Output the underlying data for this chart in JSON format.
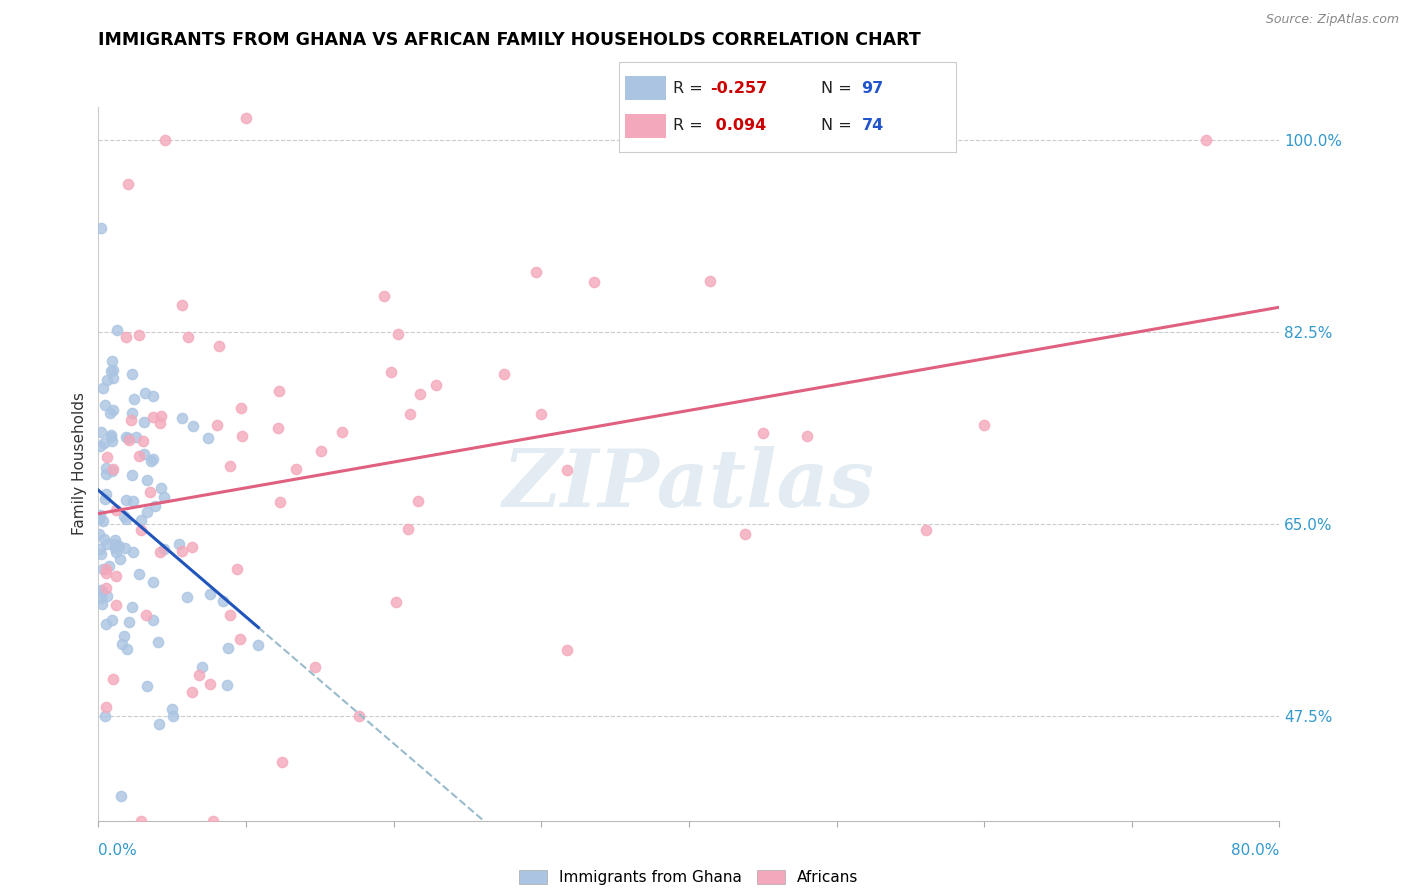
{
  "title": "IMMIGRANTS FROM GHANA VS AFRICAN FAMILY HOUSEHOLDS CORRELATION CHART",
  "source": "Source: ZipAtlas.com",
  "ylabel": "Family Households",
  "right_yticks": [
    47.5,
    65.0,
    82.5,
    100.0
  ],
  "legend_blue_label": "Immigrants from Ghana",
  "legend_pink_label": "Africans",
  "blue_color": "#aac4e2",
  "pink_color": "#f4a8bb",
  "blue_line_color": "#2255bb",
  "pink_line_color": "#e06080",
  "dashed_line_color": "#99bbcc",
  "watermark_text": "ZIPatlas",
  "xmin": 0.0,
  "xmax": 80.0,
  "ymin": 38.0,
  "ymax": 103.0,
  "blue_seed": 42,
  "pink_seed": 99,
  "legend_R_color": "#cc0000",
  "legend_N_color": "#2255cc",
  "legend_text_color": "#222222"
}
